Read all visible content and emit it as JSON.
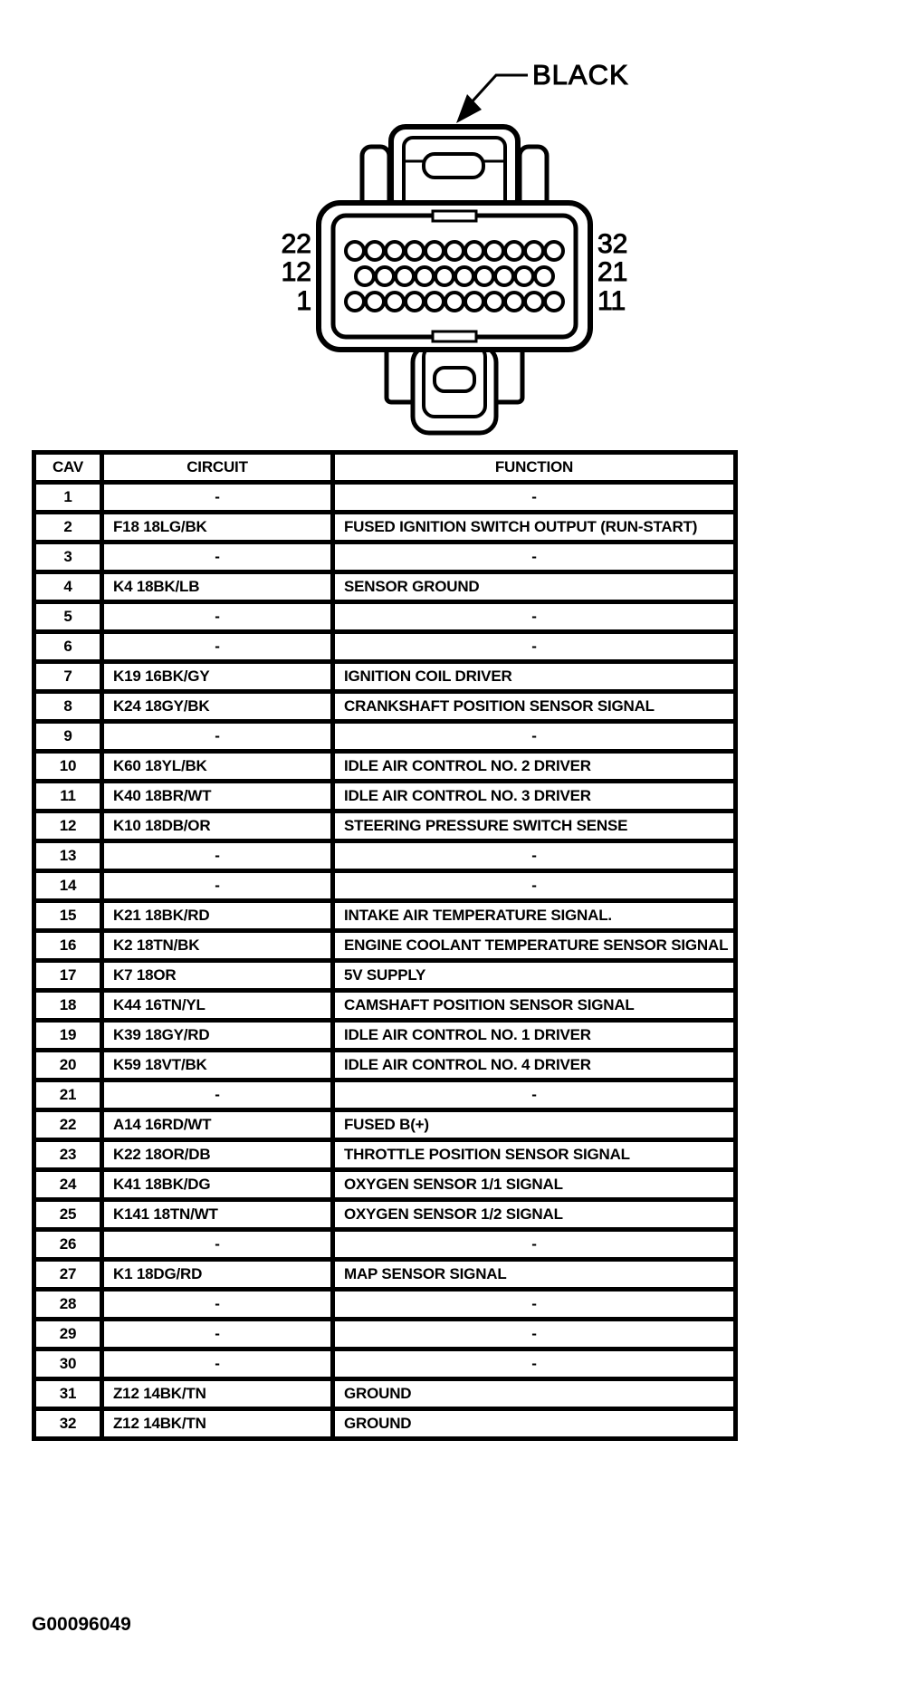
{
  "figure_label": "G00096049",
  "connector": {
    "color_label": "BLACK",
    "pin_rows": [
      {
        "left_label": "22",
        "right_label": "32",
        "count": 11
      },
      {
        "left_label": "12",
        "right_label": "21",
        "count": 10
      },
      {
        "left_label": "1",
        "right_label": "11",
        "count": 11
      }
    ]
  },
  "table": {
    "headers": [
      "CAV",
      "CIRCUIT",
      "FUNCTION"
    ],
    "rows": [
      {
        "cav": "1",
        "circuit": "-",
        "function": "-"
      },
      {
        "cav": "2",
        "circuit": "F18 18LG/BK",
        "function": "FUSED IGNITION SWITCH OUTPUT (RUN-START)"
      },
      {
        "cav": "3",
        "circuit": "-",
        "function": "-"
      },
      {
        "cav": "4",
        "circuit": "K4 18BK/LB",
        "function": "SENSOR GROUND"
      },
      {
        "cav": "5",
        "circuit": "-",
        "function": "-"
      },
      {
        "cav": "6",
        "circuit": "-",
        "function": "-"
      },
      {
        "cav": "7",
        "circuit": "K19 16BK/GY",
        "function": "IGNITION COIL DRIVER"
      },
      {
        "cav": "8",
        "circuit": "K24 18GY/BK",
        "function": "CRANKSHAFT POSITION SENSOR SIGNAL"
      },
      {
        "cav": "9",
        "circuit": "-",
        "function": "-"
      },
      {
        "cav": "10",
        "circuit": "K60 18YL/BK",
        "function": "IDLE AIR CONTROL NO. 2 DRIVER"
      },
      {
        "cav": "11",
        "circuit": "K40 18BR/WT",
        "function": "IDLE AIR CONTROL NO. 3 DRIVER"
      },
      {
        "cav": "12",
        "circuit": "K10 18DB/OR",
        "function": "STEERING PRESSURE SWITCH SENSE"
      },
      {
        "cav": "13",
        "circuit": "-",
        "function": "-"
      },
      {
        "cav": "14",
        "circuit": "-",
        "function": "-"
      },
      {
        "cav": "15",
        "circuit": "K21 18BK/RD",
        "function": "INTAKE AIR TEMPERATURE SIGNAL."
      },
      {
        "cav": "16",
        "circuit": "K2 18TN/BK",
        "function": "ENGINE COOLANT TEMPERATURE SENSOR SIGNAL"
      },
      {
        "cav": "17",
        "circuit": "K7 18OR",
        "function": "5V SUPPLY"
      },
      {
        "cav": "18",
        "circuit": "K44 16TN/YL",
        "function": "CAMSHAFT POSITION SENSOR SIGNAL"
      },
      {
        "cav": "19",
        "circuit": "K39 18GY/RD",
        "function": "IDLE AIR CONTROL NO. 1 DRIVER"
      },
      {
        "cav": "20",
        "circuit": "K59 18VT/BK",
        "function": "IDLE AIR CONTROL NO. 4 DRIVER"
      },
      {
        "cav": "21",
        "circuit": "-",
        "function": "-"
      },
      {
        "cav": "22",
        "circuit": "A14 16RD/WT",
        "function": "FUSED B(+)"
      },
      {
        "cav": "23",
        "circuit": "K22 18OR/DB",
        "function": "THROTTLE POSITION SENSOR SIGNAL"
      },
      {
        "cav": "24",
        "circuit": "K41 18BK/DG",
        "function": "OXYGEN SENSOR 1/1 SIGNAL"
      },
      {
        "cav": "25",
        "circuit": "K141 18TN/WT",
        "function": "OXYGEN SENSOR 1/2 SIGNAL"
      },
      {
        "cav": "26",
        "circuit": "-",
        "function": "-"
      },
      {
        "cav": "27",
        "circuit": "K1 18DG/RD",
        "function": "MAP SENSOR SIGNAL"
      },
      {
        "cav": "28",
        "circuit": "-",
        "function": "-"
      },
      {
        "cav": "29",
        "circuit": "-",
        "function": "-"
      },
      {
        "cav": "30",
        "circuit": "-",
        "function": "-"
      },
      {
        "cav": "31",
        "circuit": "Z12 14BK/TN",
        "function": "GROUND"
      },
      {
        "cav": "32",
        "circuit": "Z12 14BK/TN",
        "function": "GROUND"
      }
    ]
  },
  "colors": {
    "ink": "#000000",
    "paper": "#ffffff"
  }
}
